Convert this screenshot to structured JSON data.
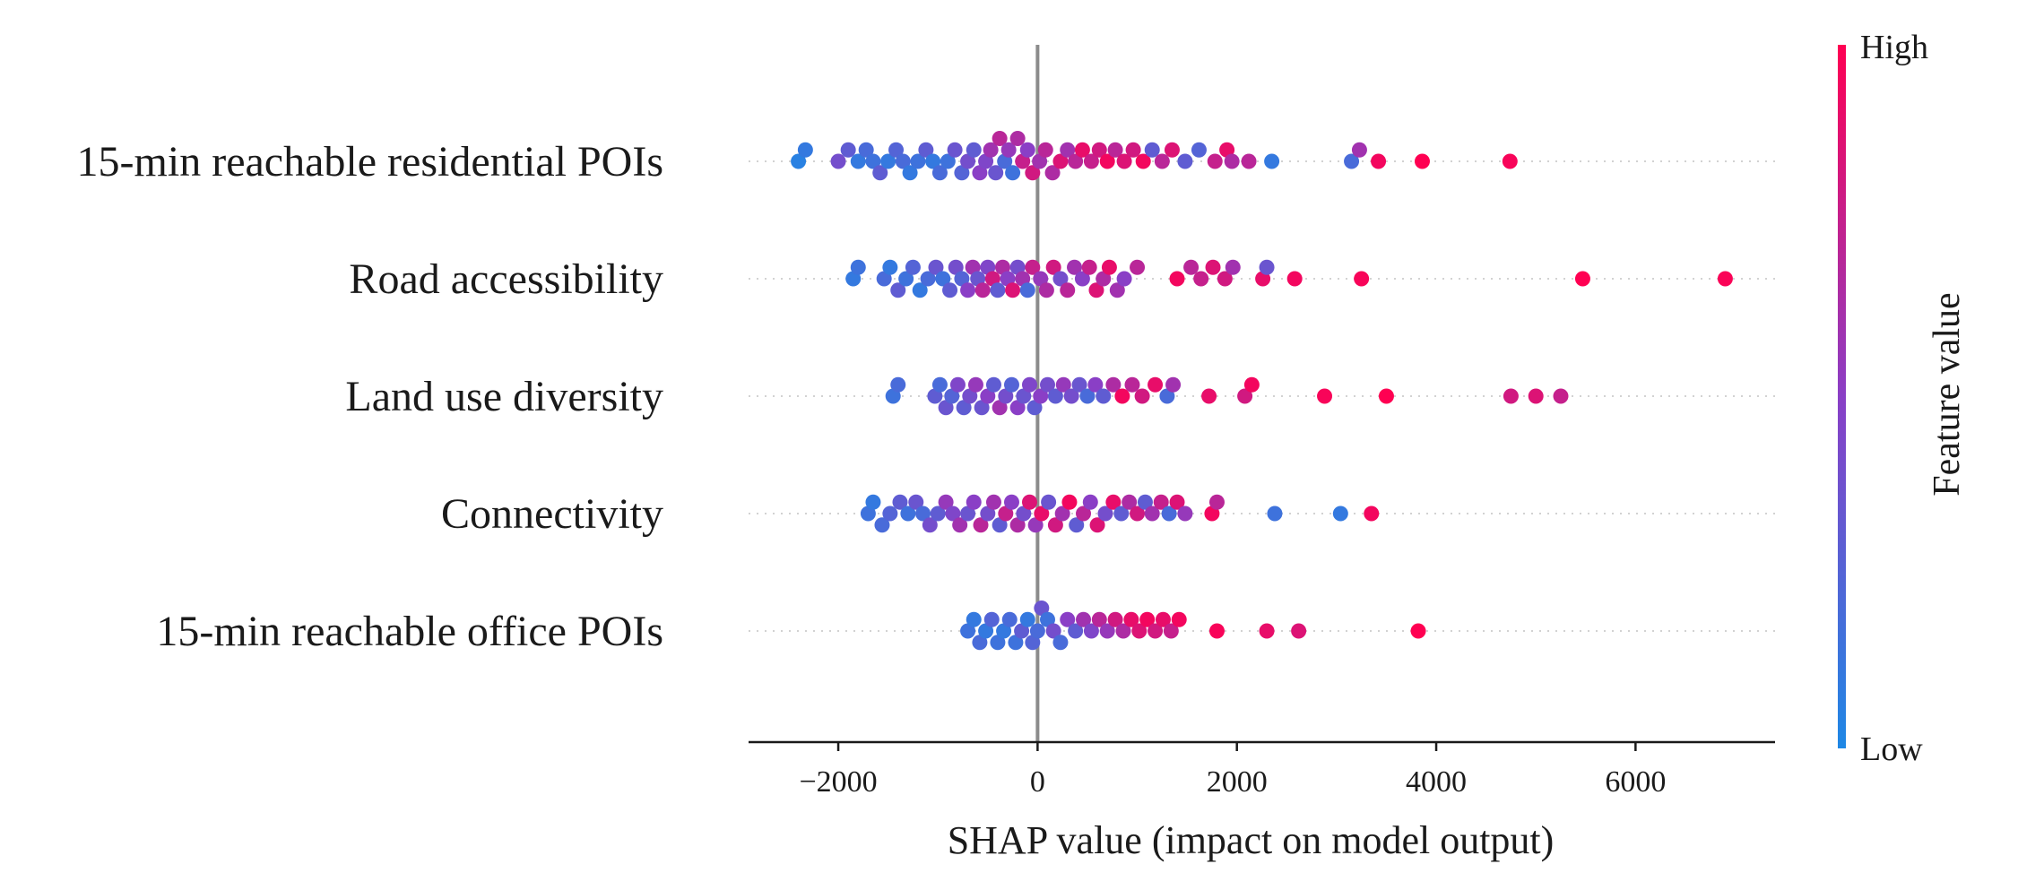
{
  "chart_data": {
    "type": "scatter",
    "subtype": "shap-beeswarm",
    "xlabel": "SHAP value (impact on model output)",
    "xlim": [
      -2900,
      7400
    ],
    "xticks": [
      -2000,
      0,
      2000,
      4000,
      6000
    ],
    "xtick_labels": [
      "−2000",
      "0",
      "2000",
      "4000",
      "6000"
    ],
    "colorbar": {
      "title": "Feature value",
      "high_label": "High",
      "low_label": "Low",
      "low_color": "#1e88e5",
      "high_color": "#ff0052"
    },
    "zero_line": true,
    "features": [
      {
        "name": "15-min reachable residential POIs",
        "points": [
          {
            "v": -2400,
            "f": 0.05
          },
          {
            "v": -2330,
            "f": 0.1
          },
          {
            "v": -2000,
            "f": 0.4
          },
          {
            "v": -1900,
            "f": 0.3
          },
          {
            "v": -1800,
            "f": 0.1
          },
          {
            "v": -1720,
            "f": 0.2
          },
          {
            "v": -1650,
            "f": 0.15
          },
          {
            "v": -1580,
            "f": 0.3
          },
          {
            "v": -1500,
            "f": 0.1
          },
          {
            "v": -1420,
            "f": 0.25
          },
          {
            "v": -1350,
            "f": 0.2
          },
          {
            "v": -1280,
            "f": 0.1
          },
          {
            "v": -1200,
            "f": 0.15
          },
          {
            "v": -1120,
            "f": 0.3
          },
          {
            "v": -1050,
            "f": 0.1
          },
          {
            "v": -980,
            "f": 0.2
          },
          {
            "v": -900,
            "f": 0.15
          },
          {
            "v": -830,
            "f": 0.35
          },
          {
            "v": -760,
            "f": 0.25
          },
          {
            "v": -700,
            "f": 0.4
          },
          {
            "v": -640,
            "f": 0.3
          },
          {
            "v": -580,
            "f": 0.5
          },
          {
            "v": -520,
            "f": 0.45
          },
          {
            "v": -470,
            "f": 0.6
          },
          {
            "v": -420,
            "f": 0.35
          },
          {
            "v": -380,
            "f": 0.7
          },
          {
            "v": -330,
            "f": 0.2
          },
          {
            "v": -290,
            "f": 0.55
          },
          {
            "v": -250,
            "f": 0.15
          },
          {
            "v": -200,
            "f": 0.65
          },
          {
            "v": -150,
            "f": 0.75
          },
          {
            "v": -100,
            "f": 0.5
          },
          {
            "v": -50,
            "f": 0.8
          },
          {
            "v": 20,
            "f": 0.6
          },
          {
            "v": 80,
            "f": 0.7
          },
          {
            "v": 150,
            "f": 0.65
          },
          {
            "v": 230,
            "f": 0.85
          },
          {
            "v": 300,
            "f": 0.6
          },
          {
            "v": 380,
            "f": 0.7
          },
          {
            "v": 450,
            "f": 0.9
          },
          {
            "v": 540,
            "f": 0.75
          },
          {
            "v": 620,
            "f": 0.8
          },
          {
            "v": 700,
            "f": 0.95
          },
          {
            "v": 780,
            "f": 0.7
          },
          {
            "v": 870,
            "f": 0.85
          },
          {
            "v": 960,
            "f": 0.8
          },
          {
            "v": 1060,
            "f": 0.95
          },
          {
            "v": 1150,
            "f": 0.3
          },
          {
            "v": 1250,
            "f": 0.7
          },
          {
            "v": 1350,
            "f": 0.85
          },
          {
            "v": 1480,
            "f": 0.3
          },
          {
            "v": 1620,
            "f": 0.25
          },
          {
            "v": 1780,
            "f": 0.75
          },
          {
            "v": 1900,
            "f": 0.9
          },
          {
            "v": 1950,
            "f": 0.65
          },
          {
            "v": 2120,
            "f": 0.7
          },
          {
            "v": 2350,
            "f": 0.1
          },
          {
            "v": 3150,
            "f": 0.2
          },
          {
            "v": 3230,
            "f": 0.6
          },
          {
            "v": 3420,
            "f": 0.95
          },
          {
            "v": 3860,
            "f": 1.0
          },
          {
            "v": 4740,
            "f": 0.97
          }
        ]
      },
      {
        "name": "Road accessibility",
        "points": [
          {
            "v": -1850,
            "f": 0.1
          },
          {
            "v": -1800,
            "f": 0.15
          },
          {
            "v": -1540,
            "f": 0.2
          },
          {
            "v": -1480,
            "f": 0.1
          },
          {
            "v": -1400,
            "f": 0.3
          },
          {
            "v": -1320,
            "f": 0.15
          },
          {
            "v": -1250,
            "f": 0.25
          },
          {
            "v": -1180,
            "f": 0.1
          },
          {
            "v": -1100,
            "f": 0.2
          },
          {
            "v": -1020,
            "f": 0.35
          },
          {
            "v": -950,
            "f": 0.15
          },
          {
            "v": -880,
            "f": 0.3
          },
          {
            "v": -820,
            "f": 0.4
          },
          {
            "v": -760,
            "f": 0.25
          },
          {
            "v": -700,
            "f": 0.5
          },
          {
            "v": -650,
            "f": 0.6
          },
          {
            "v": -600,
            "f": 0.35
          },
          {
            "v": -550,
            "f": 0.7
          },
          {
            "v": -500,
            "f": 0.45
          },
          {
            "v": -450,
            "f": 0.8
          },
          {
            "v": -400,
            "f": 0.3
          },
          {
            "v": -350,
            "f": 0.65
          },
          {
            "v": -300,
            "f": 0.5
          },
          {
            "v": -250,
            "f": 0.85
          },
          {
            "v": -200,
            "f": 0.4
          },
          {
            "v": -150,
            "f": 0.6
          },
          {
            "v": -100,
            "f": 0.2
          },
          {
            "v": -50,
            "f": 0.75
          },
          {
            "v": 30,
            "f": 0.55
          },
          {
            "v": 90,
            "f": 0.65
          },
          {
            "v": 160,
            "f": 0.8
          },
          {
            "v": 230,
            "f": 0.4
          },
          {
            "v": 300,
            "f": 0.7
          },
          {
            "v": 370,
            "f": 0.6
          },
          {
            "v": 450,
            "f": 0.5
          },
          {
            "v": 520,
            "f": 0.75
          },
          {
            "v": 590,
            "f": 0.85
          },
          {
            "v": 660,
            "f": 0.65
          },
          {
            "v": 720,
            "f": 0.9
          },
          {
            "v": 800,
            "f": 0.6
          },
          {
            "v": 870,
            "f": 0.5
          },
          {
            "v": 1000,
            "f": 0.7
          },
          {
            "v": 1400,
            "f": 0.95
          },
          {
            "v": 1540,
            "f": 0.7
          },
          {
            "v": 1640,
            "f": 0.75
          },
          {
            "v": 1760,
            "f": 0.85
          },
          {
            "v": 1880,
            "f": 0.8
          },
          {
            "v": 1960,
            "f": 0.6
          },
          {
            "v": 2260,
            "f": 0.9
          },
          {
            "v": 2300,
            "f": 0.35
          },
          {
            "v": 2580,
            "f": 0.95
          },
          {
            "v": 3250,
            "f": 0.97
          },
          {
            "v": 5470,
            "f": 1.0
          },
          {
            "v": 6900,
            "f": 0.98
          }
        ]
      },
      {
        "name": "Land use diversity",
        "points": [
          {
            "v": -1450,
            "f": 0.15
          },
          {
            "v": -1400,
            "f": 0.2
          },
          {
            "v": -1030,
            "f": 0.3
          },
          {
            "v": -980,
            "f": 0.2
          },
          {
            "v": -920,
            "f": 0.35
          },
          {
            "v": -860,
            "f": 0.25
          },
          {
            "v": -800,
            "f": 0.45
          },
          {
            "v": -740,
            "f": 0.3
          },
          {
            "v": -680,
            "f": 0.4
          },
          {
            "v": -620,
            "f": 0.55
          },
          {
            "v": -560,
            "f": 0.35
          },
          {
            "v": -500,
            "f": 0.5
          },
          {
            "v": -440,
            "f": 0.3
          },
          {
            "v": -380,
            "f": 0.6
          },
          {
            "v": -320,
            "f": 0.4
          },
          {
            "v": -260,
            "f": 0.25
          },
          {
            "v": -200,
            "f": 0.5
          },
          {
            "v": -140,
            "f": 0.35
          },
          {
            "v": -80,
            "f": 0.45
          },
          {
            "v": -30,
            "f": 0.3
          },
          {
            "v": 30,
            "f": 0.5
          },
          {
            "v": 100,
            "f": 0.4
          },
          {
            "v": 180,
            "f": 0.3
          },
          {
            "v": 260,
            "f": 0.55
          },
          {
            "v": 340,
            "f": 0.4
          },
          {
            "v": 420,
            "f": 0.35
          },
          {
            "v": 500,
            "f": 0.2
          },
          {
            "v": 580,
            "f": 0.5
          },
          {
            "v": 660,
            "f": 0.3
          },
          {
            "v": 760,
            "f": 0.65
          },
          {
            "v": 850,
            "f": 0.95
          },
          {
            "v": 950,
            "f": 0.7
          },
          {
            "v": 1050,
            "f": 0.8
          },
          {
            "v": 1180,
            "f": 0.9
          },
          {
            "v": 1300,
            "f": 0.2
          },
          {
            "v": 1360,
            "f": 0.6
          },
          {
            "v": 1720,
            "f": 0.9
          },
          {
            "v": 2080,
            "f": 0.8
          },
          {
            "v": 2150,
            "f": 0.95
          },
          {
            "v": 2880,
            "f": 0.97
          },
          {
            "v": 3500,
            "f": 1.0
          },
          {
            "v": 4750,
            "f": 0.8
          },
          {
            "v": 5000,
            "f": 0.85
          },
          {
            "v": 5250,
            "f": 0.75
          }
        ]
      },
      {
        "name": "Connectivity",
        "points": [
          {
            "v": -1700,
            "f": 0.15
          },
          {
            "v": -1650,
            "f": 0.1
          },
          {
            "v": -1560,
            "f": 0.2
          },
          {
            "v": -1480,
            "f": 0.25
          },
          {
            "v": -1380,
            "f": 0.3
          },
          {
            "v": -1300,
            "f": 0.15
          },
          {
            "v": -1220,
            "f": 0.35
          },
          {
            "v": -1150,
            "f": 0.2
          },
          {
            "v": -1080,
            "f": 0.4
          },
          {
            "v": -1000,
            "f": 0.3
          },
          {
            "v": -920,
            "f": 0.55
          },
          {
            "v": -850,
            "f": 0.45
          },
          {
            "v": -780,
            "f": 0.6
          },
          {
            "v": -700,
            "f": 0.35
          },
          {
            "v": -640,
            "f": 0.5
          },
          {
            "v": -570,
            "f": 0.7
          },
          {
            "v": -500,
            "f": 0.4
          },
          {
            "v": -440,
            "f": 0.6
          },
          {
            "v": -380,
            "f": 0.3
          },
          {
            "v": -320,
            "f": 0.75
          },
          {
            "v": -260,
            "f": 0.5
          },
          {
            "v": -200,
            "f": 0.65
          },
          {
            "v": -140,
            "f": 0.4
          },
          {
            "v": -80,
            "f": 0.85
          },
          {
            "v": -20,
            "f": 0.55
          },
          {
            "v": 40,
            "f": 0.9
          },
          {
            "v": 110,
            "f": 0.35
          },
          {
            "v": 180,
            "f": 0.8
          },
          {
            "v": 250,
            "f": 0.6
          },
          {
            "v": 320,
            "f": 0.95
          },
          {
            "v": 390,
            "f": 0.3
          },
          {
            "v": 460,
            "f": 0.7
          },
          {
            "v": 530,
            "f": 0.5
          },
          {
            "v": 600,
            "f": 0.85
          },
          {
            "v": 680,
            "f": 0.4
          },
          {
            "v": 760,
            "f": 0.9
          },
          {
            "v": 840,
            "f": 0.3
          },
          {
            "v": 920,
            "f": 0.65
          },
          {
            "v": 1000,
            "f": 0.8
          },
          {
            "v": 1080,
            "f": 0.3
          },
          {
            "v": 1150,
            "f": 0.6
          },
          {
            "v": 1240,
            "f": 0.75
          },
          {
            "v": 1320,
            "f": 0.2
          },
          {
            "v": 1400,
            "f": 0.85
          },
          {
            "v": 1480,
            "f": 0.55
          },
          {
            "v": 1750,
            "f": 0.95
          },
          {
            "v": 1800,
            "f": 0.7
          },
          {
            "v": 2380,
            "f": 0.15
          },
          {
            "v": 3040,
            "f": 0.1
          },
          {
            "v": 3350,
            "f": 0.95
          }
        ]
      },
      {
        "name": "15-min reachable office POIs",
        "points": [
          {
            "v": -700,
            "f": 0.15
          },
          {
            "v": -640,
            "f": 0.1
          },
          {
            "v": -580,
            "f": 0.2
          },
          {
            "v": -520,
            "f": 0.1
          },
          {
            "v": -460,
            "f": 0.25
          },
          {
            "v": -400,
            "f": 0.15
          },
          {
            "v": -340,
            "f": 0.1
          },
          {
            "v": -280,
            "f": 0.2
          },
          {
            "v": -220,
            "f": 0.15
          },
          {
            "v": -160,
            "f": 0.3
          },
          {
            "v": -100,
            "f": 0.1
          },
          {
            "v": -50,
            "f": 0.25
          },
          {
            "v": 0,
            "f": 0.2
          },
          {
            "v": 40,
            "f": 0.35
          },
          {
            "v": 100,
            "f": 0.15
          },
          {
            "v": 160,
            "f": 0.4
          },
          {
            "v": 230,
            "f": 0.2
          },
          {
            "v": 300,
            "f": 0.5
          },
          {
            "v": 380,
            "f": 0.3
          },
          {
            "v": 460,
            "f": 0.6
          },
          {
            "v": 540,
            "f": 0.45
          },
          {
            "v": 620,
            "f": 0.7
          },
          {
            "v": 700,
            "f": 0.55
          },
          {
            "v": 780,
            "f": 0.8
          },
          {
            "v": 860,
            "f": 0.65
          },
          {
            "v": 940,
            "f": 0.9
          },
          {
            "v": 1020,
            "f": 0.85
          },
          {
            "v": 1100,
            "f": 0.95
          },
          {
            "v": 1180,
            "f": 0.8
          },
          {
            "v": 1260,
            "f": 0.9
          },
          {
            "v": 1340,
            "f": 0.75
          },
          {
            "v": 1420,
            "f": 0.95
          },
          {
            "v": 1800,
            "f": 0.97
          },
          {
            "v": 2300,
            "f": 0.9
          },
          {
            "v": 2620,
            "f": 0.85
          },
          {
            "v": 3820,
            "f": 1.0
          }
        ]
      }
    ]
  }
}
